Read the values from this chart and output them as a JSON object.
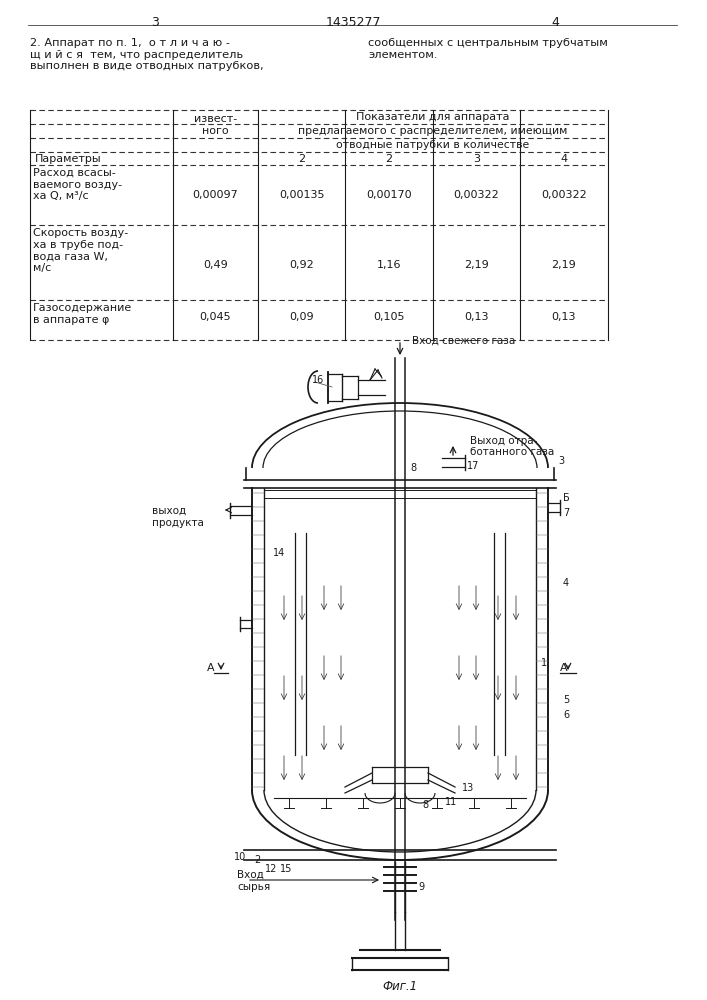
{
  "page_num_left": "3",
  "page_num_center": "1435277",
  "page_num_right": "4",
  "bg_color": "#ffffff",
  "text_color": "#1a1a1a",
  "para2_left": "2. Аппарат по п. 1,  о т л и ч а ю -\nщ и й с я  тем, что распределитель\nвыполнен в виде отводных патрубков,",
  "para2_right": "сообщенных с центральным трубчатым\nэлементом.",
  "table_header1": "Показатели для аппарата",
  "table_header2": "предлагаемого с распределителем, имеющим",
  "table_header3": "отводные патрубки в количестве",
  "row1_label": "Расход всасы-\nваемого возду-\nха Q, м³/с",
  "row1_vals": [
    "0,00097",
    "0,00135",
    "0,00170",
    "0,00322",
    "0,00322"
  ],
  "row2_label": "Скорость возду-\nха в трубе под-\nвода газа W,\nм/с",
  "row2_vals": [
    "0,49",
    "0,92",
    "1,16",
    "2,19",
    "2,19"
  ],
  "row3_label": "Газосодержание\nв аппарате φ",
  "row3_vals": [
    "0,045",
    "0,09",
    "0,105",
    "0,13",
    "0,13"
  ],
  "fig_caption": "Фиг.1",
  "vhod_svezh": "Вход свежего газа",
  "vyhod_otrab1": "Выход отра-",
  "vyhod_otrab2": "ботанного газа",
  "vyhod_prod": "выход\nпродукта",
  "vhod_syrya": "Вход\nсырья",
  "line_color": "#1a1a1a"
}
